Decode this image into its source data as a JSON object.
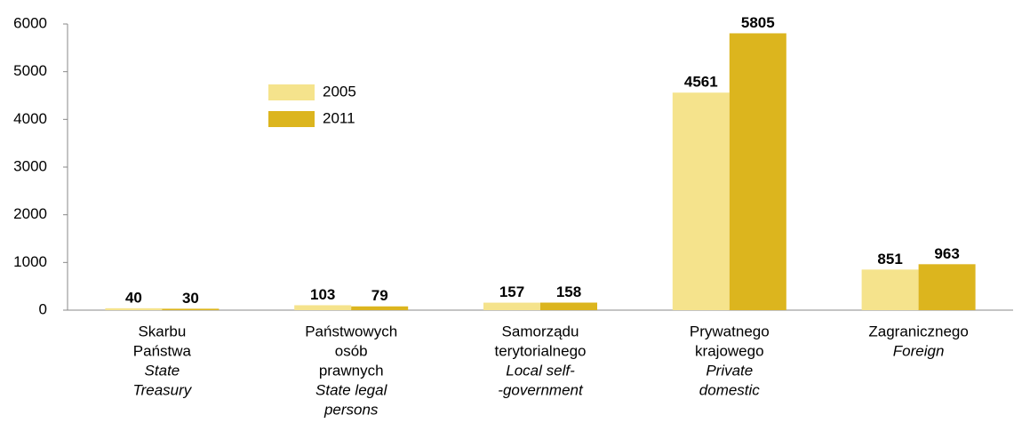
{
  "chart_data": {
    "type": "bar",
    "categories": [
      {
        "polish": [
          "Skarbu",
          "Państwa"
        ],
        "english": [
          "State",
          "Treasury"
        ]
      },
      {
        "polish": [
          "Państwowych",
          "osób",
          "prawnych"
        ],
        "english": [
          "State legal",
          "persons"
        ]
      },
      {
        "polish": [
          "Samorządu",
          "terytorialnego"
        ],
        "english": [
          "Local self-",
          "-government"
        ]
      },
      {
        "polish": [
          "Prywatnego",
          "krajowego"
        ],
        "english": [
          "Private",
          "domestic"
        ]
      },
      {
        "polish": [
          "Zagranicznego"
        ],
        "english": [
          "Foreign"
        ]
      }
    ],
    "series": [
      {
        "name": "2005",
        "color": "#f5e38c",
        "values": [
          40,
          103,
          157,
          4561,
          851
        ]
      },
      {
        "name": "2011",
        "color": "#dcb51e",
        "values": [
          30,
          79,
          158,
          5805,
          963
        ]
      }
    ],
    "ylim": [
      0,
      6000
    ],
    "yticks": [
      0,
      1000,
      2000,
      3000,
      4000,
      5000,
      6000
    ],
    "grid": false,
    "legend": "upper left"
  }
}
